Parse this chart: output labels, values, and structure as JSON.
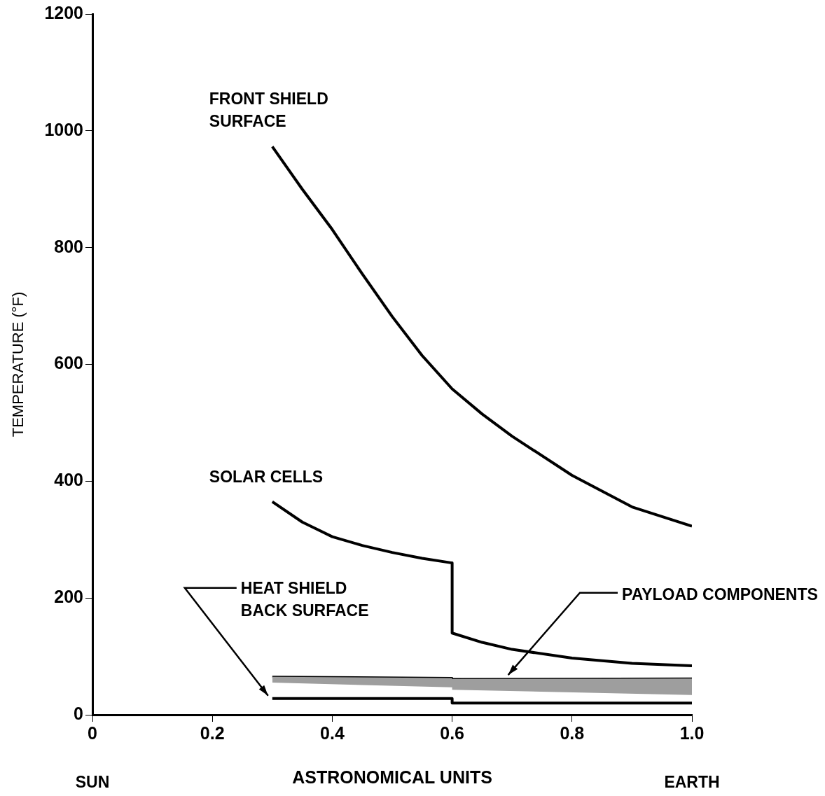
{
  "chart_data": {
    "type": "line",
    "xlabel": "ASTRONOMICAL UNITS",
    "ylabel": "TEMPERATURE (°F)",
    "xlim": [
      0,
      1
    ],
    "xticks": [
      0,
      0.2,
      0.4,
      0.6,
      0.8,
      {
        "value": 1,
        "label": "1.0"
      }
    ],
    "ylim": [
      0,
      1200
    ],
    "yticks": [
      0,
      200,
      400,
      600,
      800,
      1000,
      1200
    ],
    "grid": false,
    "legend": false,
    "marker": "none",
    "line_style": "solid",
    "annotations": [
      "SUN",
      "EARTH"
    ],
    "series": [
      {
        "name": "FRONT SHIELD SURFACE",
        "color": "#000000",
        "x": [
          0.3,
          0.35,
          0.4,
          0.45,
          0.5,
          0.55,
          0.6,
          0.65,
          0.7,
          0.8,
          0.9,
          1.0
        ],
        "values": [
          973,
          900,
          831,
          755,
          682,
          615,
          558,
          515,
          477,
          410,
          356,
          323
        ]
      },
      {
        "name": "SOLAR CELLS",
        "color": "#000000",
        "x": [
          0.3,
          0.35,
          0.4,
          0.45,
          0.5,
          0.55,
          0.6,
          0.6,
          0.65,
          0.7,
          0.8,
          0.9,
          1.0
        ],
        "values": [
          365,
          330,
          305,
          290,
          278,
          268,
          260,
          140,
          124,
          112,
          97,
          88,
          84
        ]
      },
      {
        "name": "HEAT SHIELD BACK SURFACE",
        "color": "#000000",
        "x": [
          0.3,
          0.6,
          0.6,
          1.0
        ],
        "values": [
          28,
          28,
          20,
          20
        ]
      },
      {
        "name": "PAYLOAD COMPONENTS",
        "color": "#000000",
        "x": [
          0.3,
          0.6,
          0.6,
          1.0
        ],
        "values": [
          65,
          63,
          61,
          62
        ],
        "lower": [
          55,
          47,
          43,
          34
        ],
        "upper": [
          65,
          63,
          61,
          62
        ]
      }
    ]
  }
}
